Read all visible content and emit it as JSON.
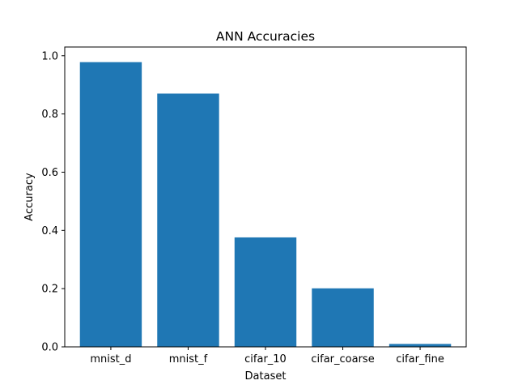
{
  "chart_data": {
    "type": "bar",
    "title": "ANN Accuracies",
    "xlabel": "Dataset",
    "ylabel": "Accuracy",
    "categories": [
      "mnist_d",
      "mnist_f",
      "cifar_10",
      "cifar_coarse",
      "cifar_fine"
    ],
    "values": [
      0.978,
      0.87,
      0.376,
      0.201,
      0.01
    ],
    "ylim": [
      0,
      1.03
    ],
    "yticks": [
      0.0,
      0.2,
      0.4,
      0.6,
      0.8,
      1.0
    ],
    "ytick_labels": [
      "0.0",
      "0.2",
      "0.4",
      "0.6",
      "0.8",
      "1.0"
    ],
    "grid": false,
    "bar_color": "#1f77b4"
  }
}
